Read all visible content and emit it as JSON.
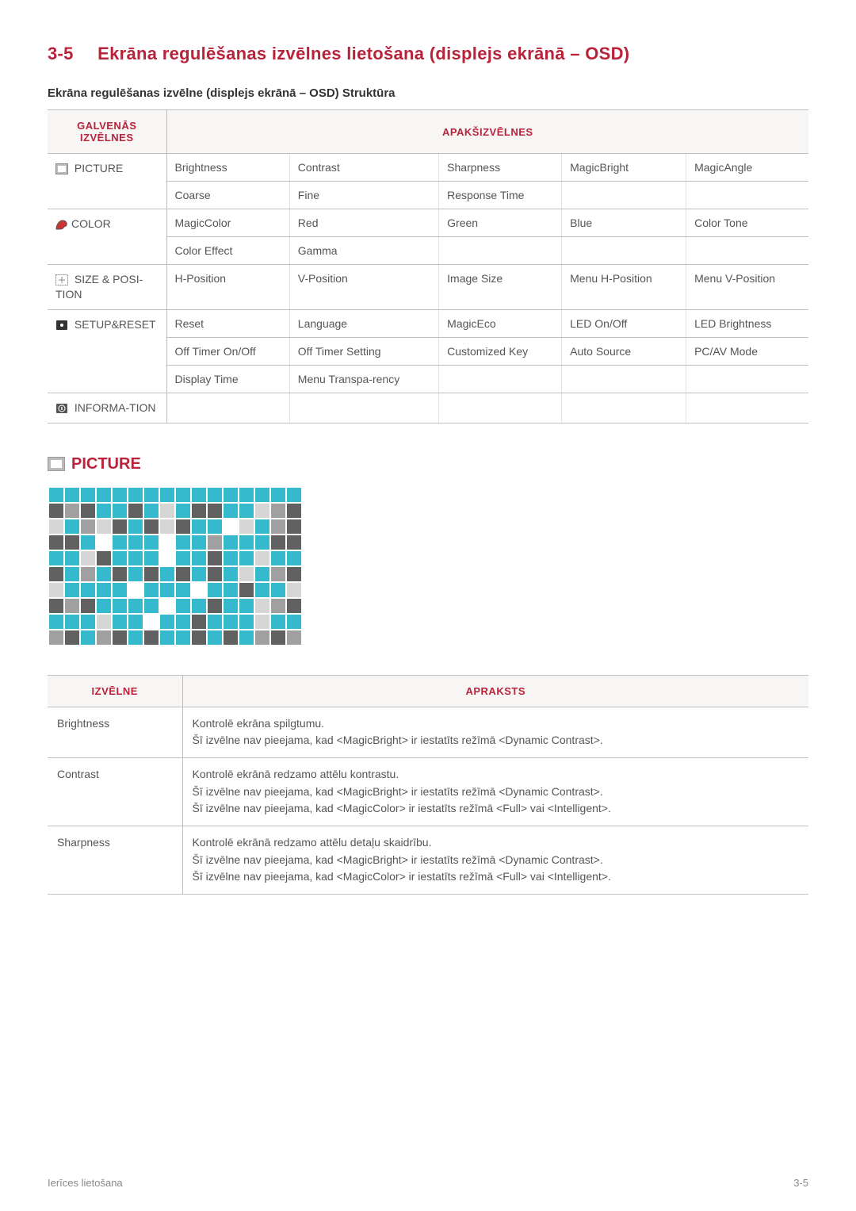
{
  "heading": {
    "num": "3-5",
    "title": "Ekrāna regulēšanas izvēlnes lietošana (displejs ekrānā – OSD)"
  },
  "structure_title": "Ekrāna regulēšanas izvēlne (displejs ekrānā – OSD) Struktūra",
  "osd_headers": {
    "main": "GALVENĀS IZVĒLNES",
    "sub": "APAKŠIZVĒLNES"
  },
  "osd_rows": {
    "picture": {
      "label": " PICTURE",
      "rows": [
        [
          "Brightness",
          "Contrast",
          "Sharpness",
          "MagicBright",
          "MagicAngle"
        ],
        [
          "Coarse",
          "Fine",
          "Response Time",
          "",
          ""
        ]
      ]
    },
    "color": {
      "label": "COLOR",
      "rows": [
        [
          "MagicColor",
          "Red",
          "Green",
          "Blue",
          "Color Tone"
        ],
        [
          "Color Effect",
          "Gamma",
          "",
          "",
          ""
        ]
      ]
    },
    "size": {
      "label": " SIZE & POSI-TION",
      "rows": [
        [
          "H-Position",
          "V-Position",
          "Image Size",
          "Menu H-Position",
          "Menu V-Position"
        ]
      ]
    },
    "setup": {
      "label": " SETUP&RESET",
      "rows": [
        [
          "Reset",
          "Language",
          "MagicEco",
          "LED On/Off",
          "LED Brightness"
        ],
        [
          "Off Timer On/Off",
          "Off Timer Setting",
          "Customized Key",
          "Auto Source",
          "PC/AV Mode"
        ],
        [
          "Display Time",
          "Menu Transpa-rency",
          "",
          "",
          ""
        ]
      ]
    },
    "info": {
      "label": " INFORMA-TION",
      "rows": [
        [
          "",
          "",
          "",
          "",
          ""
        ]
      ]
    }
  },
  "picture_section_title": "PICTURE",
  "pixel_art": {
    "colors": {
      "a": "#34bacc",
      "b": "#616161",
      "c": "#a0a0a0",
      "d": "#d6d6d6",
      "e": "#ffffff"
    },
    "grid": [
      "aaaaaaaaaaaaaaaa",
      "bcbaabadabbaadcb",
      "dacdbabdbaaedacb",
      "bbaeaaaeaacaaabb",
      "aadbaaaeaabaadaa",
      "bacababababadacb",
      "daaaaeaaaeaabaad",
      "bcbaaaaeaabaadcb",
      "aaadaaeaabaaadaa",
      "cbacbabaababacbc"
    ]
  },
  "desc_headers": {
    "menu": "IZVĒLNE",
    "desc": "APRAKSTS"
  },
  "desc_rows": [
    {
      "label": "Brightness",
      "lines": [
        "Kontrolē ekrāna spilgtumu.",
        "Šī izvēlne nav pieejama, kad <MagicBright> ir iestatīts režīmā <Dynamic Contrast>."
      ]
    },
    {
      "label": "Contrast",
      "lines": [
        "Kontrolē ekrānā redzamo attēlu kontrastu.",
        "Šī izvēlne nav pieejama, kad <MagicBright> ir iestatīts režīmā <Dynamic Contrast>.",
        "Šī izvēlne nav pieejama, kad <MagicColor> ir iestatīts režīmā <Full> vai <Intelligent>."
      ]
    },
    {
      "label": "Sharpness",
      "lines": [
        "Kontrolē ekrānā redzamo attēlu detaļu skaidrību.",
        "Šī izvēlne nav pieejama, kad <MagicBright> ir iestatīts režīmā <Dynamic Contrast>.",
        "Šī izvēlne nav pieejama, kad <MagicColor> ir iestatīts režīmā <Full> vai <Intelligent>."
      ]
    }
  ],
  "footer": {
    "left": "Ierīces lietošana",
    "right": "3-5"
  }
}
